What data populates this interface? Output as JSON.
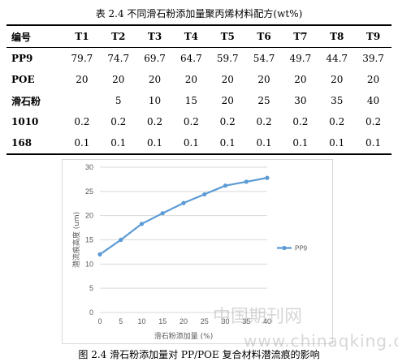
{
  "table_caption": "表 2.4 不同滑石粉添加量聚丙烯材料配方(wt%)",
  "table": {
    "headers": [
      "编号",
      "T1",
      "T2",
      "T3",
      "T4",
      "T5",
      "T6",
      "T7",
      "T8",
      "T9"
    ],
    "rows": [
      [
        "PP9",
        "79.7",
        "74.7",
        "69.7",
        "64.7",
        "59.7",
        "54.7",
        "49.7",
        "44.7",
        "39.7"
      ],
      [
        "POE",
        "20",
        "20",
        "20",
        "20",
        "20",
        "20",
        "20",
        "20",
        "20"
      ],
      [
        "滑石粉",
        "",
        "5",
        "10",
        "15",
        "20",
        "25",
        "30",
        "35",
        "40"
      ],
      [
        "1010",
        "0.2",
        "0.2",
        "0.2",
        "0.2",
        "0.2",
        "0.2",
        "0.2",
        "0.2",
        "0.2"
      ],
      [
        "168",
        "0.1",
        "0.1",
        "0.1",
        "0.1",
        "0.1",
        "0.1",
        "0.1",
        "0.1",
        "0.1"
      ]
    ]
  },
  "chart_data": {
    "type": "line",
    "x": [
      0,
      5,
      10,
      15,
      20,
      25,
      30,
      35,
      40
    ],
    "series": [
      {
        "name": "PP9",
        "values": [
          12.0,
          15.0,
          18.3,
          20.5,
          22.6,
          24.4,
          26.2,
          27.0,
          27.8
        ]
      }
    ],
    "xlabel": "滑石粉添加量 (%)",
    "ylabel": "潜流痕高度 (um)",
    "xticks": [
      "0",
      "5",
      "10",
      "15",
      "20",
      "25",
      "30",
      "35",
      "40"
    ],
    "yticks": [
      "0",
      "5",
      "10",
      "15",
      "20",
      "25",
      "30"
    ],
    "xlim": [
      0,
      40
    ],
    "ylim": [
      0,
      30
    ],
    "grid": "horizontal",
    "legend": "right",
    "series_color": "#5b9bd5"
  },
  "figure_caption": "图 2.4 滑石粉添加量对 PP/POE 复合材料潜流痕的影响",
  "watermark": {
    "line1": "中国期刊网",
    "line2": "www.chinaqking.com"
  }
}
